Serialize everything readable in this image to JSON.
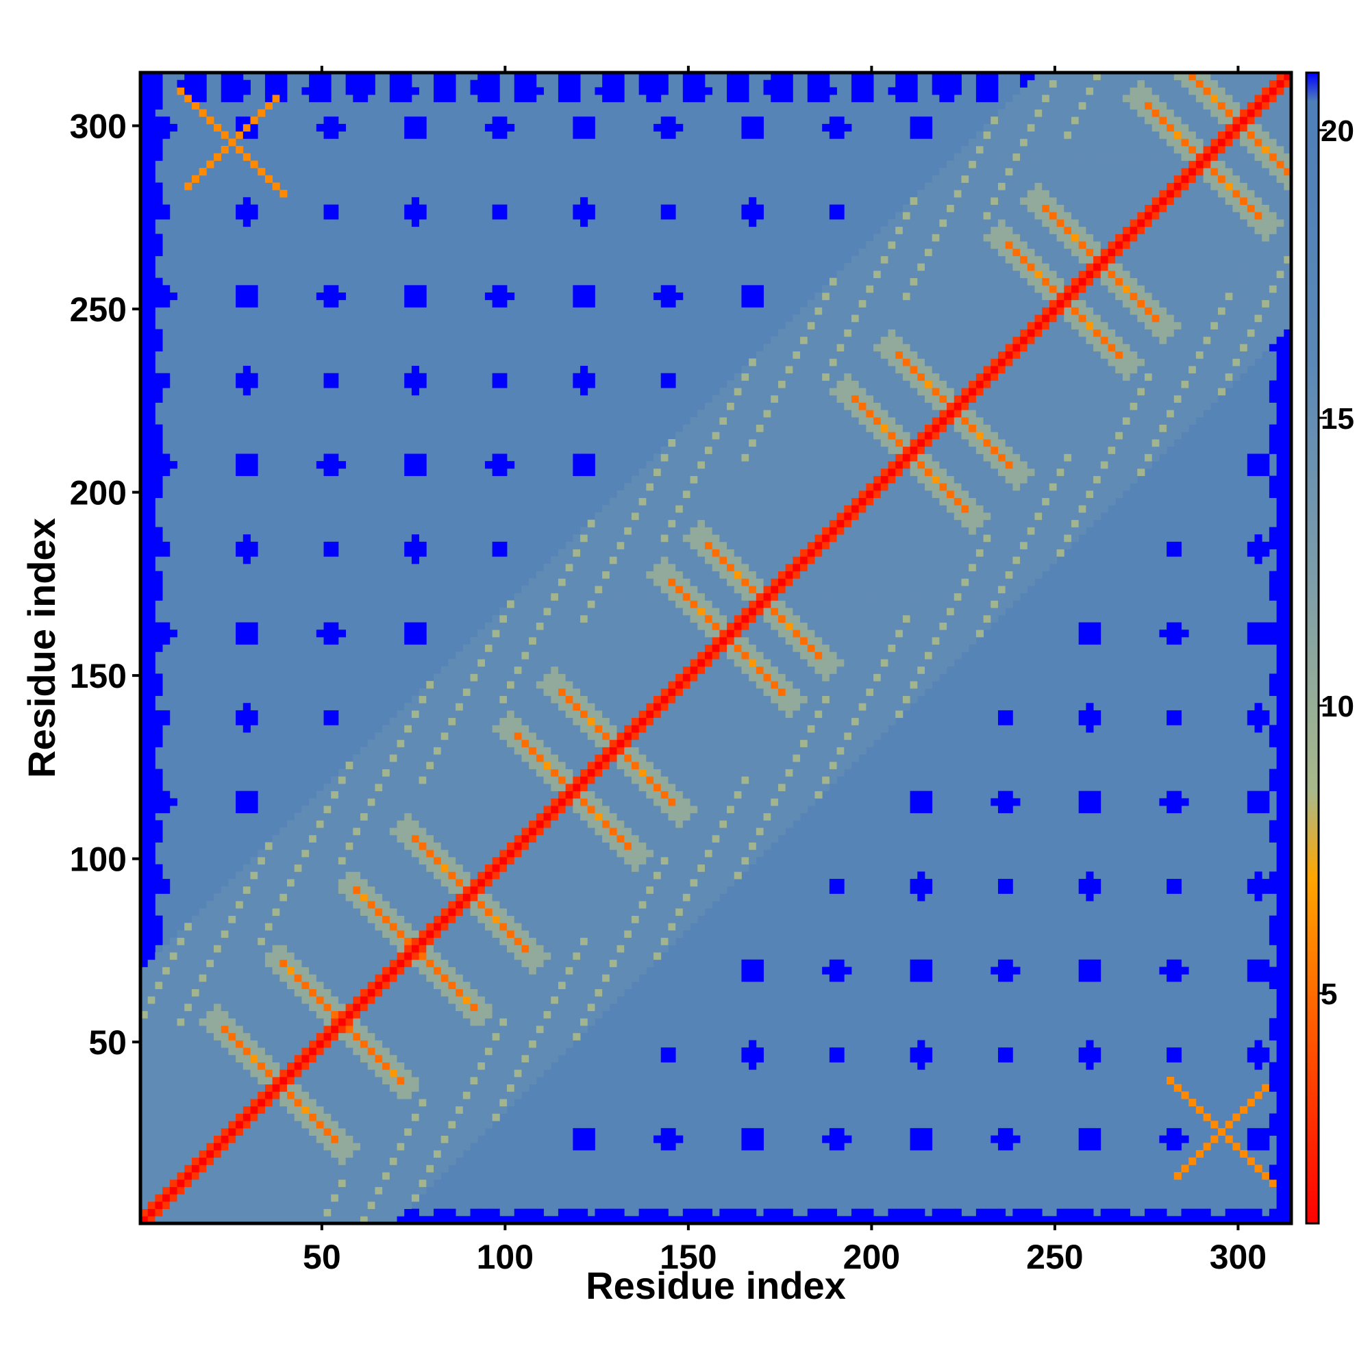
{
  "chart_data": {
    "type": "heatmap",
    "title": "",
    "xlabel": "Residue index",
    "ylabel": "Residue index",
    "n_residues": 314,
    "xlim": [
      1,
      314
    ],
    "ylim": [
      1,
      314
    ],
    "x_ticks": [
      50,
      100,
      150,
      200,
      250,
      300
    ],
    "y_ticks": [
      50,
      100,
      150,
      200,
      250,
      300
    ],
    "colorbar": {
      "ticks": [
        5,
        10,
        15,
        20
      ],
      "range": [
        1,
        21
      ],
      "stops": [
        {
          "value": 1,
          "color": "#ff0000"
        },
        {
          "value": 4,
          "color": "#ff5000"
        },
        {
          "value": 7,
          "color": "#ffa500"
        },
        {
          "value": 8.5,
          "color": "#a9b98a"
        },
        {
          "value": 12,
          "color": "#7f9ea8"
        },
        {
          "value": 16,
          "color": "#5b88b6"
        },
        {
          "value": 20.5,
          "color": "#4f7fb9"
        },
        {
          "value": 21,
          "color": "#0000ff"
        }
      ]
    },
    "features": {
      "diagonal": {
        "from": 1,
        "to": 314,
        "value": 1
      },
      "anti_diagonal_crossings": [
        {
          "center": 38,
          "value": 5
        },
        {
          "center": 55,
          "value": 5
        },
        {
          "center": 75,
          "value": 5
        },
        {
          "center": 90,
          "value": 5
        },
        {
          "center": 118,
          "value": 5
        },
        {
          "center": 130,
          "value": 5
        },
        {
          "center": 160,
          "value": 5
        },
        {
          "center": 170,
          "value": 5
        },
        {
          "center": 210,
          "value": 5
        },
        {
          "center": 222,
          "value": 5
        },
        {
          "center": 252,
          "value": 5
        },
        {
          "center": 262,
          "value": 5
        },
        {
          "center": 290,
          "value": 5
        },
        {
          "center": 300,
          "value": 5
        }
      ],
      "corner_contacts": [
        {
          "x": 295,
          "y": 25,
          "value": 6
        },
        {
          "x": 25,
          "y": 295,
          "value": 6
        }
      ],
      "far_value": 21,
      "background_value": 18
    }
  },
  "colors": {
    "far": "#0000ff",
    "background": "#5686b8",
    "frame": "#000000"
  }
}
